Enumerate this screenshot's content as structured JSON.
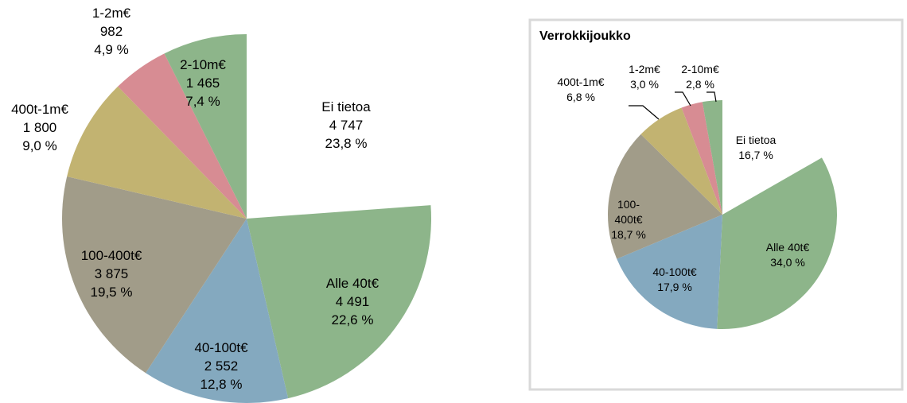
{
  "chart_data": [
    {
      "type": "pie",
      "categories": [
        "Ei tietoa",
        "Alle 40t€",
        "40-100t€",
        "100-400t€",
        "400t-1m€",
        "1-2m€",
        "2-10m€"
      ],
      "values": [
        4747,
        4491,
        2552,
        3875,
        1800,
        982,
        1465
      ],
      "value_labels": [
        "4 747",
        "4 491",
        "2 552",
        "3 875",
        "1 800",
        "982",
        "1 465"
      ],
      "percents": [
        23.8,
        22.6,
        12.8,
        19.5,
        9.0,
        4.9,
        7.4
      ],
      "percent_labels": [
        "23,8 %",
        "22,6 %",
        "12,8 %",
        "19,5 %",
        "9,0 %",
        "4,9 %",
        "7,4 %"
      ],
      "colors": [
        "#ffffff",
        "#8db58a",
        "#84a9bf",
        "#a19c89",
        "#c2b371",
        "#d78c93",
        "#8db58a"
      ]
    },
    {
      "type": "pie",
      "title": "Verrokkijoukko",
      "categories": [
        "Ei tietoa",
        "Alle 40t€",
        "40-100t€",
        "100-400t€",
        "400t-1m€",
        "1-2m€",
        "2-10m€"
      ],
      "values": [
        16.7,
        34.0,
        17.9,
        18.7,
        6.8,
        3.0,
        2.8
      ],
      "value_labels": [
        "16,7 %",
        "34,0 %",
        "17,9 %",
        "18,7 %",
        "6,8 %",
        "3,0 %",
        "2,8 %"
      ],
      "colors": [
        "#ffffff",
        "#8db58a",
        "#84a9bf",
        "#a19c89",
        "#c2b371",
        "#d78c93",
        "#8db58a"
      ]
    }
  ]
}
